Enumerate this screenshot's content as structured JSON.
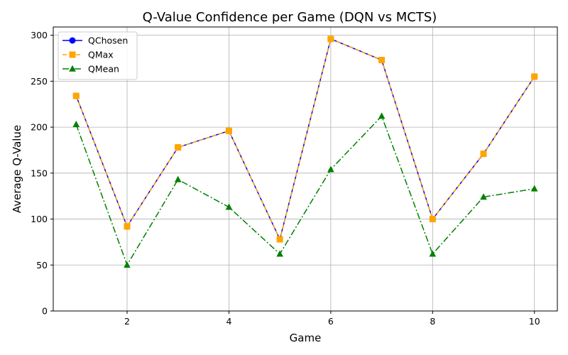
{
  "chart_data": {
    "type": "line",
    "title": "Q-Value Confidence per Game (DQN vs MCTS)",
    "xlabel": "Game",
    "ylabel": "Average Q-Value",
    "x": [
      1,
      2,
      3,
      4,
      5,
      6,
      7,
      8,
      9,
      10
    ],
    "xlim": [
      0.55,
      10.45
    ],
    "ylim": [
      0,
      309
    ],
    "xticks": [
      2,
      4,
      6,
      8,
      10
    ],
    "yticks": [
      0,
      50,
      100,
      150,
      200,
      250,
      300
    ],
    "grid": true,
    "legend_position": "top-left",
    "series": [
      {
        "name": "QChosen",
        "color": "#0000ff",
        "linestyle": "solid",
        "marker": "circle",
        "values": [
          234,
          92,
          178,
          196,
          78,
          296,
          273,
          100,
          171,
          255
        ]
      },
      {
        "name": "QMax",
        "color": "#ffa500",
        "linestyle": "dashed",
        "marker": "square",
        "values": [
          234,
          92,
          178,
          196,
          78,
          296,
          273,
          100,
          171,
          255
        ]
      },
      {
        "name": "QMean",
        "color": "#008000",
        "linestyle": "dashdot",
        "marker": "triangle",
        "values": [
          203,
          50,
          143,
          113,
          62,
          154,
          212,
          62,
          124,
          133
        ]
      }
    ]
  }
}
